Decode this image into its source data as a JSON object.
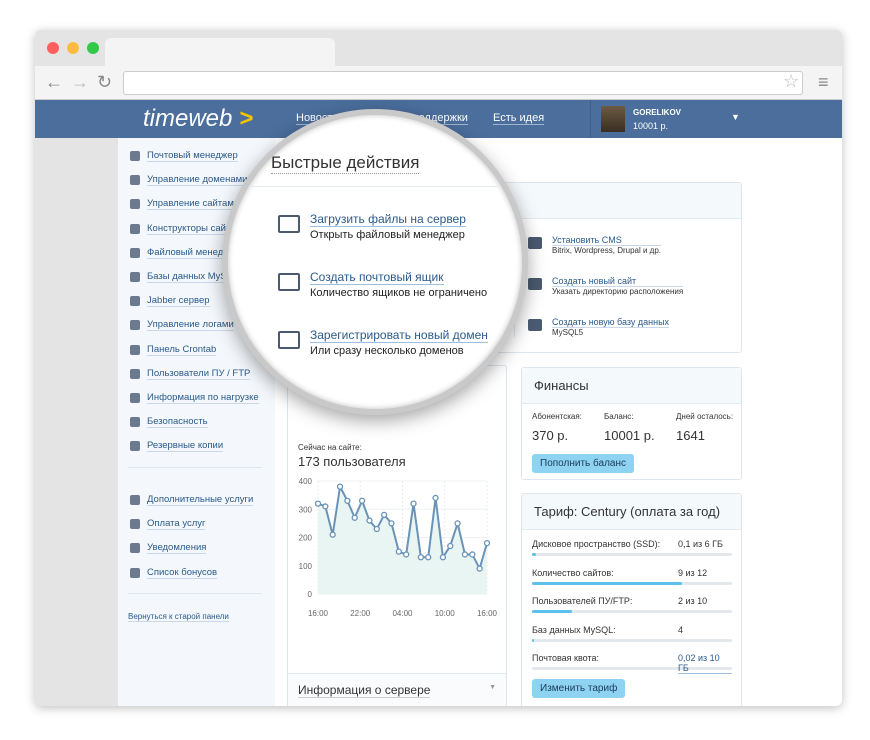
{
  "header": {
    "logo": "timeweb",
    "nav": [
      "Новости",
      "Служба поддержки",
      "Есть идея"
    ],
    "user": {
      "name": "GORELIKOV",
      "balance": "10001 р."
    }
  },
  "sidebar": {
    "items": [
      "Почтовый менеджер",
      "Управление доменами",
      "Управление сайтами",
      "Конструкторы сайтов",
      "Файловый менеджер",
      "Базы данных MySQL",
      "Jabber сервер",
      "Управление логами",
      "Панель Crontab",
      "Пользователи ПУ / FTP",
      "Информация по нагрузке",
      "Безопасность",
      "Резервные копии"
    ],
    "extra": [
      "Дополнительные услуги",
      "Оплата услуг",
      "Уведомления",
      "Список бонусов"
    ],
    "old_panel": "Вернуться к старой панели"
  },
  "quick": {
    "title": "Быстрые действия",
    "left": [
      {
        "label": "Загрузить файлы на сервер",
        "sub": "Открыть файловый менеджер",
        "icon": "folder-icon"
      },
      {
        "label": "Создать почтовый ящик",
        "sub": "Количество ящиков не ограничено",
        "icon": "mail-add-icon"
      },
      {
        "label": "Зарегистрировать новый домен",
        "sub": "Или сразу несколько доменов",
        "icon": "browser-add-icon"
      }
    ],
    "right": [
      {
        "label": "Установить CMS",
        "sub": "Bitrix, Wordpress, Drupal и др.",
        "icon": "briefcase-icon"
      },
      {
        "label": "Создать новый сайт",
        "sub": "Указать директорию расположения",
        "icon": "folder-add-icon"
      },
      {
        "label": "Создать новую базу данных",
        "sub": "MySQL5",
        "icon": "database-add-icon"
      }
    ]
  },
  "stats": {
    "online_label": "Сейчас на сайте:",
    "online_value": "173 пользователя",
    "server_info": "Информация о сервере"
  },
  "chart_data": {
    "type": "line",
    "x": [
      "16:00",
      "17:00",
      "18:00",
      "19:00",
      "20:00",
      "21:00",
      "22:00",
      "23:00",
      "00:00",
      "01:00",
      "02:00",
      "03:00",
      "04:00",
      "05:00",
      "06:00",
      "07:00",
      "08:00",
      "09:00",
      "10:00",
      "11:00",
      "12:00",
      "13:00",
      "14:00",
      "15:00"
    ],
    "values": [
      320,
      310,
      210,
      380,
      330,
      270,
      330,
      260,
      230,
      280,
      250,
      150,
      140,
      320,
      130,
      130,
      340,
      130,
      170,
      250,
      140,
      140,
      90,
      180
    ],
    "xticks": [
      "16:00",
      "22:00",
      "04:00",
      "10:00",
      "16:00"
    ],
    "yticks": [
      0,
      100,
      200,
      300,
      400
    ],
    "ylim": [
      0,
      400
    ],
    "grid": true,
    "color": "#6a93b8"
  },
  "finance": {
    "title": "Финансы",
    "cols": [
      {
        "label": "Абонентская:",
        "value": "370 р."
      },
      {
        "label": "Баланс:",
        "value": "10001 р."
      },
      {
        "label": "Дней осталось:",
        "value": "1641"
      }
    ],
    "button": "Пополнить баланс"
  },
  "tariff": {
    "title": "Тариф: Century (оплата за год)",
    "rows": [
      {
        "label": "Дисковое пространство (SSD):",
        "value": "0,1 из 6 ГБ",
        "pct": 2
      },
      {
        "label": "Количество сайтов:",
        "value": "9 из 12",
        "pct": 75
      },
      {
        "label": "Пользователей ПУ/FTP:",
        "value": "2 из 10",
        "pct": 20
      },
      {
        "label": "Баз данных MySQL:",
        "value": "4",
        "pct": 1
      },
      {
        "label": "Почтовая квота:",
        "value": "0,02 из 10 ГБ",
        "pct": 0
      }
    ],
    "button": "Изменить тариф"
  }
}
